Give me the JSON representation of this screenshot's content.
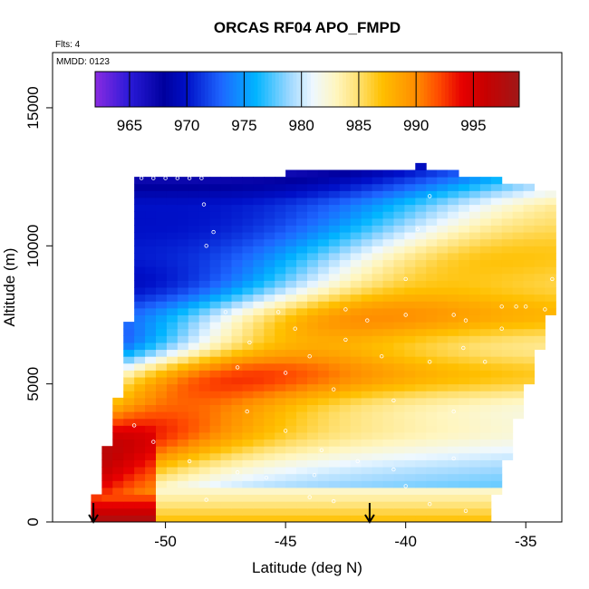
{
  "chart_data": {
    "type": "heatmap",
    "title": "ORCAS RF04 APO_FMPD",
    "annotations": {
      "flights": "Flts: 4",
      "date": "MMDD: 0123"
    },
    "xlabel": "Latitude (deg N)",
    "ylabel": "Altitude (m)",
    "xlim": [
      -54.7,
      -33.5
    ],
    "ylim": [
      0,
      17000
    ],
    "xticks": [
      -50,
      -45,
      -40,
      -35
    ],
    "yticks": [
      0,
      5000,
      10000,
      15000
    ],
    "colorbar": {
      "min": 962,
      "max": 999,
      "ticks": [
        965,
        970,
        975,
        980,
        985,
        990,
        995
      ],
      "stops": [
        [
          962,
          "#8a2be2"
        ],
        [
          965,
          "#2a1ad8"
        ],
        [
          968,
          "#00009e"
        ],
        [
          970,
          "#0010c8"
        ],
        [
          973,
          "#1e66ff"
        ],
        [
          976,
          "#00b4ff"
        ],
        [
          979,
          "#9fd8ff"
        ],
        [
          981,
          "#eef8ff"
        ],
        [
          983,
          "#fff6c0"
        ],
        [
          985,
          "#ffe070"
        ],
        [
          987,
          "#ffc000"
        ],
        [
          990,
          "#ff8c00"
        ],
        [
          992,
          "#ff4a00"
        ],
        [
          994,
          "#e60000"
        ],
        [
          996,
          "#c80000"
        ],
        [
          999,
          "#a01818"
        ]
      ]
    },
    "ground_markers_lat": [
      -53.0,
      -41.5
    ],
    "observation_points": [
      [
        -52.5,
        12450
      ],
      [
        -52.0,
        12450
      ],
      [
        -51.5,
        12450
      ],
      [
        -51.0,
        12450
      ],
      [
        -50.5,
        12450
      ],
      [
        -50.0,
        12450
      ],
      [
        -49.5,
        12450
      ],
      [
        -49.0,
        12450
      ],
      [
        -48.5,
        12450
      ],
      [
        -39.0,
        12900
      ],
      [
        -38.5,
        12900
      ],
      [
        -38.0,
        12900
      ],
      [
        -37.5,
        12900
      ],
      [
        -37.0,
        12900
      ],
      [
        -36.5,
        12900
      ],
      [
        -36.0,
        12900
      ],
      [
        -35.5,
        12900
      ],
      [
        -35.0,
        12900
      ],
      [
        -52.0,
        12000
      ],
      [
        -48.4,
        11500
      ],
      [
        -52.4,
        11000
      ],
      [
        -48.0,
        10500
      ],
      [
        -48.3,
        10000
      ],
      [
        -52.6,
        10000
      ],
      [
        -39.0,
        11800
      ],
      [
        -39.5,
        10600
      ],
      [
        -40.0,
        8800
      ],
      [
        -33.9,
        8800
      ],
      [
        -34.2,
        7700
      ],
      [
        -35.0,
        7800
      ],
      [
        -35.4,
        7800
      ],
      [
        -36.0,
        7800
      ],
      [
        -47.5,
        7600
      ],
      [
        -46.5,
        6500
      ],
      [
        -45.3,
        7600
      ],
      [
        -44.6,
        7000
      ],
      [
        -42.5,
        7700
      ],
      [
        -41.6,
        7300
      ],
      [
        -40.0,
        7500
      ],
      [
        -38.0,
        7500
      ],
      [
        -37.5,
        7300
      ],
      [
        -36.0,
        7000
      ],
      [
        -44.0,
        6000
      ],
      [
        -42.5,
        6600
      ],
      [
        -41.0,
        6000
      ],
      [
        -39.0,
        5800
      ],
      [
        -37.6,
        6300
      ],
      [
        -36.7,
        5800
      ],
      [
        -47.0,
        5600
      ],
      [
        -45.0,
        5400
      ],
      [
        -43.0,
        4800
      ],
      [
        -40.5,
        4400
      ],
      [
        -38.0,
        4000
      ],
      [
        -46.6,
        4000
      ],
      [
        -45.0,
        3300
      ],
      [
        -43.5,
        2600
      ],
      [
        -42.0,
        2200
      ],
      [
        -40.5,
        1900
      ],
      [
        -38.0,
        2300
      ],
      [
        -45.8,
        1600
      ],
      [
        -43.8,
        1700
      ],
      [
        -40.0,
        1300
      ],
      [
        -44.0,
        900
      ],
      [
        -43.0,
        750
      ],
      [
        -39.0,
        650
      ],
      [
        -37.5,
        400
      ],
      [
        -51.3,
        3500
      ],
      [
        -50.5,
        2900
      ],
      [
        -49.0,
        2200
      ],
      [
        -47.0,
        1800
      ],
      [
        -48.3,
        800
      ]
    ]
  }
}
